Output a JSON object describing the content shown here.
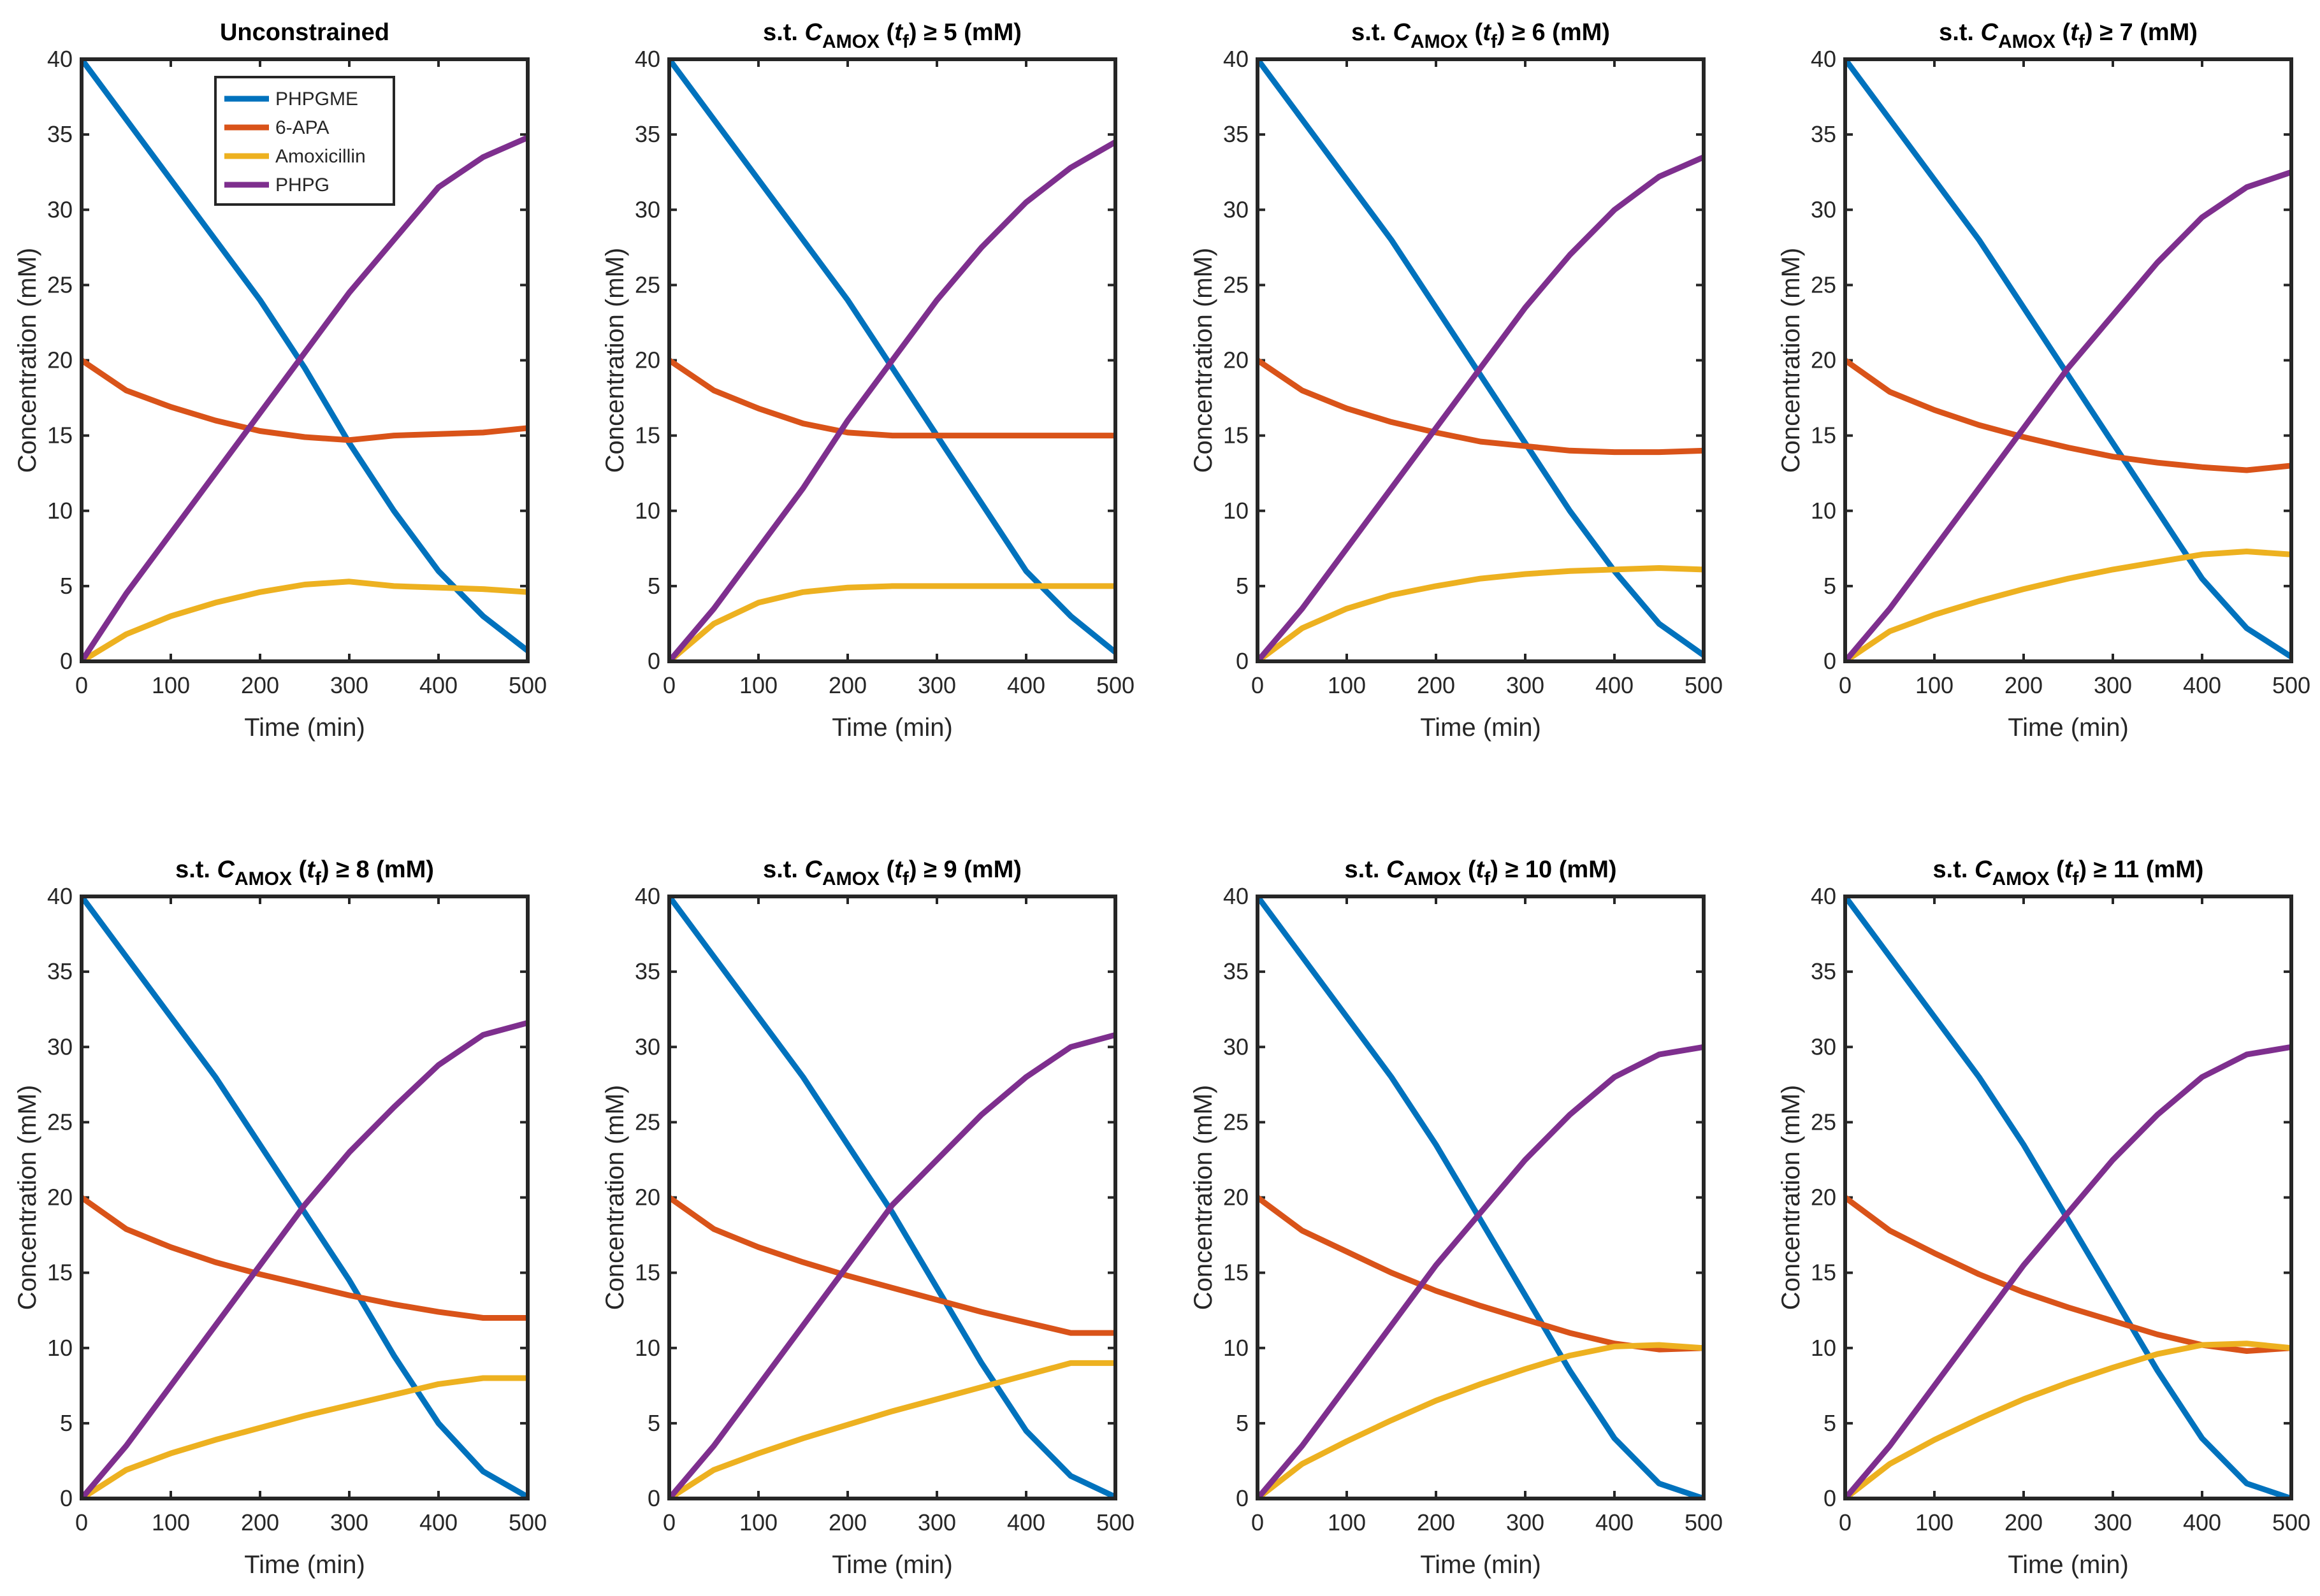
{
  "colors": {
    "PHPGME": "#0072BD",
    "6-APA": "#D95319",
    "Amoxicillin": "#EDB120",
    "PHPG": "#7E2F8E"
  },
  "legend": {
    "location": "top-left inside first panel",
    "entries": [
      "PHPGME",
      "6-APA",
      "Amoxicillin",
      "PHPG"
    ]
  },
  "chart_data": [
    {
      "type": "line",
      "title": "Unconstrained",
      "title_parts": null,
      "xlabel": "Time (min)",
      "ylabel": "Concentration (mM)",
      "xlim": [
        0,
        500
      ],
      "ylim": [
        0,
        40
      ],
      "xticks": [
        "0",
        "100",
        "200",
        "300",
        "400",
        "500"
      ],
      "yticks": [
        "0",
        "5",
        "10",
        "15",
        "20",
        "25",
        "30",
        "35",
        "40"
      ],
      "x": [
        0,
        50,
        100,
        150,
        200,
        250,
        300,
        350,
        400,
        450,
        500
      ],
      "series": [
        {
          "name": "PHPGME",
          "values": [
            40,
            36,
            32,
            28,
            24,
            19.5,
            14.5,
            10,
            6,
            3,
            0.7
          ]
        },
        {
          "name": "6-APA",
          "values": [
            20,
            18,
            16.9,
            16,
            15.3,
            14.9,
            14.7,
            15.0,
            15.1,
            15.2,
            15.5
          ]
        },
        {
          "name": "Amoxicillin",
          "values": [
            0,
            1.8,
            3.0,
            3.9,
            4.6,
            5.1,
            5.3,
            5.0,
            4.9,
            4.8,
            4.6
          ]
        },
        {
          "name": "PHPG",
          "values": [
            0,
            4.5,
            8.5,
            12.5,
            16.5,
            20.5,
            24.5,
            28,
            31.5,
            33.5,
            34.8
          ]
        }
      ]
    },
    {
      "type": "line",
      "title": "s.t. C_AMOX (t_f) ≥ 5 (mM)",
      "title_parts": {
        "prefix": "s.t.",
        "var": "C",
        "sub": "AMOX",
        "tvar": "t",
        "tsub": "f",
        "suffix": "≥ 5 (mM)"
      },
      "xlabel": "Time (min)",
      "ylabel": "Concentration (mM)",
      "xlim": [
        0,
        500
      ],
      "ylim": [
        0,
        40
      ],
      "xticks": [
        "0",
        "100",
        "200",
        "300",
        "400",
        "500"
      ],
      "yticks": [
        "0",
        "5",
        "10",
        "15",
        "20",
        "25",
        "30",
        "35",
        "40"
      ],
      "x": [
        0,
        50,
        100,
        150,
        200,
        250,
        300,
        350,
        400,
        450,
        500
      ],
      "series": [
        {
          "name": "PHPGME",
          "values": [
            40,
            36,
            32,
            28,
            24,
            19.5,
            15,
            10.5,
            6,
            3,
            0.6
          ]
        },
        {
          "name": "6-APA",
          "values": [
            20,
            18,
            16.8,
            15.8,
            15.2,
            15.0,
            15.0,
            15.0,
            15.0,
            15.0,
            15.0
          ]
        },
        {
          "name": "Amoxicillin",
          "values": [
            0,
            2.5,
            3.9,
            4.6,
            4.9,
            5.0,
            5.0,
            5.0,
            5.0,
            5.0,
            5.0
          ]
        },
        {
          "name": "PHPG",
          "values": [
            0,
            3.5,
            7.5,
            11.5,
            16,
            20,
            24,
            27.5,
            30.5,
            32.8,
            34.5
          ]
        }
      ]
    },
    {
      "type": "line",
      "title": "s.t. C_AMOX (t_f) ≥ 6 (mM)",
      "title_parts": {
        "prefix": "s.t.",
        "var": "C",
        "sub": "AMOX",
        "tvar": "t",
        "tsub": "f",
        "suffix": "≥ 6 (mM)"
      },
      "xlabel": "Time (min)",
      "ylabel": "Concentration (mM)",
      "xlim": [
        0,
        500
      ],
      "ylim": [
        0,
        40
      ],
      "xticks": [
        "0",
        "100",
        "200",
        "300",
        "400",
        "500"
      ],
      "yticks": [
        "0",
        "5",
        "10",
        "15",
        "20",
        "25",
        "30",
        "35",
        "40"
      ],
      "x": [
        0,
        50,
        100,
        150,
        200,
        250,
        300,
        350,
        400,
        450,
        500
      ],
      "series": [
        {
          "name": "PHPGME",
          "values": [
            40,
            36,
            32,
            28,
            23.5,
            19,
            14.5,
            10,
            6,
            2.5,
            0.4
          ]
        },
        {
          "name": "6-APA",
          "values": [
            20,
            18,
            16.8,
            15.9,
            15.2,
            14.6,
            14.3,
            14.0,
            13.9,
            13.9,
            14.0
          ]
        },
        {
          "name": "Amoxicillin",
          "values": [
            0,
            2.2,
            3.5,
            4.4,
            5.0,
            5.5,
            5.8,
            6.0,
            6.1,
            6.2,
            6.1
          ]
        },
        {
          "name": "PHPG",
          "values": [
            0,
            3.5,
            7.5,
            11.5,
            15.5,
            19.5,
            23.5,
            27,
            30,
            32.2,
            33.5
          ]
        }
      ]
    },
    {
      "type": "line",
      "title": "s.t. C_AMOX (t_f) ≥ 7 (mM)",
      "title_parts": {
        "prefix": "s.t.",
        "var": "C",
        "sub": "AMOX",
        "tvar": "t",
        "tsub": "f",
        "suffix": "≥ 7 (mM)"
      },
      "xlabel": "Time (min)",
      "ylabel": "Concentration (mM)",
      "xlim": [
        0,
        500
      ],
      "ylim": [
        0,
        40
      ],
      "xticks": [
        "0",
        "100",
        "200",
        "300",
        "400",
        "500"
      ],
      "yticks": [
        "0",
        "5",
        "10",
        "15",
        "20",
        "25",
        "30",
        "35",
        "40"
      ],
      "x": [
        0,
        50,
        100,
        150,
        200,
        250,
        300,
        350,
        400,
        450,
        500
      ],
      "series": [
        {
          "name": "PHPGME",
          "values": [
            40,
            36,
            32,
            28,
            23.5,
            19,
            14.5,
            10,
            5.5,
            2.2,
            0.3
          ]
        },
        {
          "name": "6-APA",
          "values": [
            20,
            17.9,
            16.7,
            15.7,
            14.9,
            14.2,
            13.6,
            13.2,
            12.9,
            12.7,
            13.0
          ]
        },
        {
          "name": "Amoxicillin",
          "values": [
            0,
            2.0,
            3.1,
            4.0,
            4.8,
            5.5,
            6.1,
            6.6,
            7.1,
            7.3,
            7.1
          ]
        },
        {
          "name": "PHPG",
          "values": [
            0,
            3.5,
            7.5,
            11.5,
            15.5,
            19.5,
            23,
            26.5,
            29.5,
            31.5,
            32.5
          ]
        }
      ]
    },
    {
      "type": "line",
      "title": "s.t. C_AMOX (t_f) ≥ 8 (mM)",
      "title_parts": {
        "prefix": "s.t.",
        "var": "C",
        "sub": "AMOX",
        "tvar": "t",
        "tsub": "f",
        "suffix": "≥ 8 (mM)"
      },
      "xlabel": "Time (min)",
      "ylabel": "Concentration (mM)",
      "xlim": [
        0,
        500
      ],
      "ylim": [
        0,
        40
      ],
      "xticks": [
        "0",
        "100",
        "200",
        "300",
        "400",
        "500"
      ],
      "yticks": [
        "0",
        "5",
        "10",
        "15",
        "20",
        "25",
        "30",
        "35",
        "40"
      ],
      "x": [
        0,
        50,
        100,
        150,
        200,
        250,
        300,
        350,
        400,
        450,
        500
      ],
      "series": [
        {
          "name": "PHPGME",
          "values": [
            40,
            36,
            32,
            28,
            23.5,
            19,
            14.5,
            9.5,
            5,
            1.8,
            0.1
          ]
        },
        {
          "name": "6-APA",
          "values": [
            20,
            17.9,
            16.7,
            15.7,
            14.9,
            14.2,
            13.5,
            12.9,
            12.4,
            12.0,
            12.0
          ]
        },
        {
          "name": "Amoxicillin",
          "values": [
            0,
            1.9,
            3.0,
            3.9,
            4.7,
            5.5,
            6.2,
            6.9,
            7.6,
            8.0,
            8.0
          ]
        },
        {
          "name": "PHPG",
          "values": [
            0,
            3.5,
            7.5,
            11.5,
            15.5,
            19.5,
            23,
            26,
            28.8,
            30.8,
            31.6
          ]
        }
      ]
    },
    {
      "type": "line",
      "title": "s.t. C_AMOX (t_f) ≥ 9 (mM)",
      "title_parts": {
        "prefix": "s.t.",
        "var": "C",
        "sub": "AMOX",
        "tvar": "t",
        "tsub": "f",
        "suffix": "≥ 9 (mM)"
      },
      "xlabel": "Time (min)",
      "ylabel": "Concentration (mM)",
      "xlim": [
        0,
        500
      ],
      "ylim": [
        0,
        40
      ],
      "xticks": [
        "0",
        "100",
        "200",
        "300",
        "400",
        "500"
      ],
      "yticks": [
        "0",
        "5",
        "10",
        "15",
        "20",
        "25",
        "30",
        "35",
        "40"
      ],
      "x": [
        0,
        50,
        100,
        150,
        200,
        250,
        300,
        350,
        400,
        450,
        500
      ],
      "series": [
        {
          "name": "PHPGME",
          "values": [
            40,
            36,
            32,
            28,
            23.5,
            19,
            14,
            9,
            4.5,
            1.5,
            0.1
          ]
        },
        {
          "name": "6-APA",
          "values": [
            20,
            17.9,
            16.7,
            15.7,
            14.8,
            14.0,
            13.2,
            12.4,
            11.7,
            11.0,
            11.0
          ]
        },
        {
          "name": "Amoxicillin",
          "values": [
            0,
            1.9,
            3.0,
            4.0,
            4.9,
            5.8,
            6.6,
            7.4,
            8.2,
            9.0,
            9.0
          ]
        },
        {
          "name": "PHPG",
          "values": [
            0,
            3.5,
            7.5,
            11.5,
            15.5,
            19.5,
            22.5,
            25.5,
            28,
            30,
            30.8
          ]
        }
      ]
    },
    {
      "type": "line",
      "title": "s.t. C_AMOX (t_f) ≥ 10 (mM)",
      "title_parts": {
        "prefix": "s.t.",
        "var": "C",
        "sub": "AMOX",
        "tvar": "t",
        "tsub": "f",
        "suffix": "≥ 10 (mM)"
      },
      "xlabel": "Time (min)",
      "ylabel": "Concentration (mM)",
      "xlim": [
        0,
        500
      ],
      "ylim": [
        0,
        40
      ],
      "xticks": [
        "0",
        "100",
        "200",
        "300",
        "400",
        "500"
      ],
      "yticks": [
        "0",
        "5",
        "10",
        "15",
        "20",
        "25",
        "30",
        "35",
        "40"
      ],
      "x": [
        0,
        50,
        100,
        150,
        200,
        250,
        300,
        350,
        400,
        450,
        500
      ],
      "series": [
        {
          "name": "PHPGME",
          "values": [
            40,
            36,
            32,
            28,
            23.5,
            18.5,
            13.5,
            8.5,
            4,
            1,
            0.0
          ]
        },
        {
          "name": "6-APA",
          "values": [
            20,
            17.8,
            16.4,
            15.0,
            13.8,
            12.8,
            11.9,
            11.0,
            10.3,
            9.9,
            10.0
          ]
        },
        {
          "name": "Amoxicillin",
          "values": [
            0,
            2.3,
            3.8,
            5.2,
            6.5,
            7.6,
            8.6,
            9.5,
            10.1,
            10.2,
            10.0
          ]
        },
        {
          "name": "PHPG",
          "values": [
            0,
            3.5,
            7.5,
            11.5,
            15.5,
            19,
            22.5,
            25.5,
            28,
            29.5,
            30.0
          ]
        }
      ]
    },
    {
      "type": "line",
      "title": "s.t. C_AMOX (t_f) ≥ 11 (mM)",
      "title_parts": {
        "prefix": "s.t.",
        "var": "C",
        "sub": "AMOX",
        "tvar": "t",
        "tsub": "f",
        "suffix": "≥ 11 (mM)"
      },
      "xlabel": "Time (min)",
      "ylabel": "Concentration (mM)",
      "xlim": [
        0,
        500
      ],
      "ylim": [
        0,
        40
      ],
      "xticks": [
        "0",
        "100",
        "200",
        "300",
        "400",
        "500"
      ],
      "yticks": [
        "0",
        "5",
        "10",
        "15",
        "20",
        "25",
        "30",
        "35",
        "40"
      ],
      "x": [
        0,
        50,
        100,
        150,
        200,
        250,
        300,
        350,
        400,
        450,
        500
      ],
      "series": [
        {
          "name": "PHPGME",
          "values": [
            40,
            36,
            32,
            28,
            23.5,
            18.5,
            13.5,
            8.5,
            4,
            1,
            0.0
          ]
        },
        {
          "name": "6-APA",
          "values": [
            20,
            17.8,
            16.3,
            14.9,
            13.7,
            12.7,
            11.8,
            10.9,
            10.2,
            9.8,
            10.0
          ]
        },
        {
          "name": "Amoxicillin",
          "values": [
            0,
            2.3,
            3.9,
            5.3,
            6.6,
            7.7,
            8.7,
            9.6,
            10.2,
            10.3,
            10.0
          ]
        },
        {
          "name": "PHPG",
          "values": [
            0,
            3.5,
            7.5,
            11.5,
            15.5,
            19,
            22.5,
            25.5,
            28,
            29.5,
            30.0
          ]
        }
      ]
    }
  ]
}
